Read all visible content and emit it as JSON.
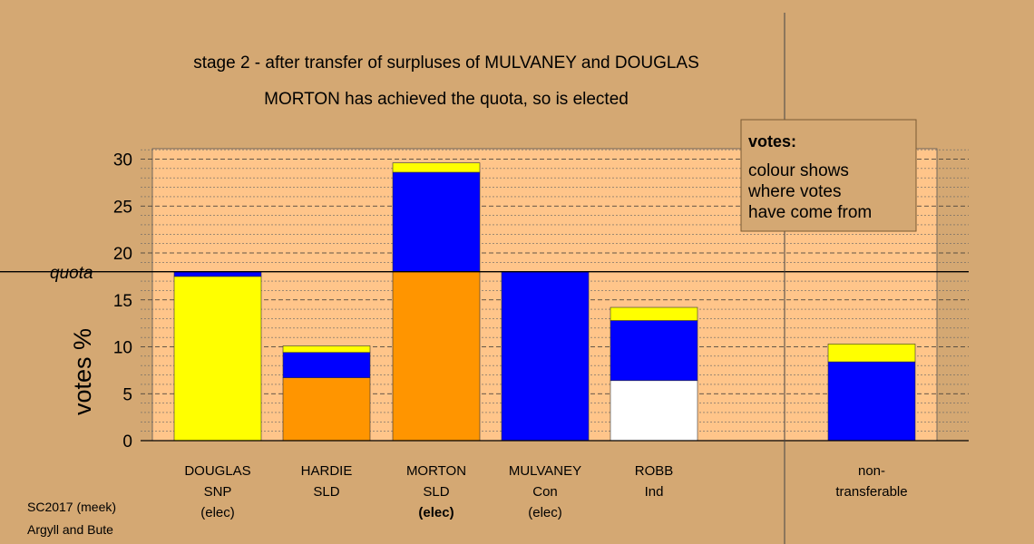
{
  "chart_data": {
    "type": "bar",
    "stacked": true,
    "title": "stage 2 - after transfer of surpluses of MULVANEY and DOUGLAS",
    "subtitle": "MORTON has achieved the quota, so is elected",
    "ylabel": "votes %",
    "xlabel": "",
    "ylim": [
      0,
      31
    ],
    "yticks": [
      "0",
      "5",
      "10",
      "15",
      "20",
      "25",
      "30"
    ],
    "ytick_values": [
      0,
      5,
      10,
      15,
      20,
      25,
      30
    ],
    "quota": {
      "label": "quota",
      "value": 18
    },
    "categories": [
      {
        "lines": [
          "DOUGLAS",
          "SNP",
          "(elec)"
        ],
        "bold_line": -1
      },
      {
        "lines": [
          "HARDIE",
          "SLD"
        ],
        "bold_line": -1
      },
      {
        "lines": [
          "MORTON",
          "SLD",
          "(elec)"
        ],
        "bold_line": 2
      },
      {
        "lines": [
          "MULVANEY",
          "Con",
          "(elec)"
        ],
        "bold_line": -1
      },
      {
        "lines": [
          "ROBB",
          "Ind"
        ],
        "bold_line": -1
      },
      {
        "lines": [
          "non-",
          "transferable"
        ],
        "bold_line": -1
      }
    ],
    "segments_by_category": [
      [
        {
          "color": "#ffff00",
          "value": 17.5
        },
        {
          "color": "#0000ff",
          "value": 0.5
        }
      ],
      [
        {
          "color": "#ff9500",
          "value": 6.7
        },
        {
          "color": "#0000ff",
          "value": 2.7
        },
        {
          "color": "#ffff00",
          "value": 0.7
        }
      ],
      [
        {
          "color": "#ff9500",
          "value": 18.0
        },
        {
          "color": "#0000ff",
          "value": 10.6
        },
        {
          "color": "#ffff00",
          "value": 1.0
        }
      ],
      [
        {
          "color": "#0000ff",
          "value": 18.0
        }
      ],
      [
        {
          "color": "#ffffff",
          "value": 6.4
        },
        {
          "color": "#0000ff",
          "value": 6.4
        },
        {
          "color": "#ffff00",
          "value": 1.4
        }
      ],
      [
        {
          "color": "#0000ff",
          "value": 8.4
        },
        {
          "color": "#ffff00",
          "value": 1.9
        }
      ]
    ],
    "colors": {
      "background": "#d4a873",
      "plot_background": "#ffc58a",
      "yellow": "#ffff00",
      "blue": "#0000ff",
      "orange": "#ff9500",
      "white": "#ffffff"
    },
    "legend": {
      "title": "votes:",
      "lines": [
        "colour shows",
        "where votes",
        "have come from"
      ],
      "placement": "top-right"
    },
    "footnote": {
      "line1": "SC2017 (meek)",
      "line2": "Argyll and Bute"
    }
  }
}
